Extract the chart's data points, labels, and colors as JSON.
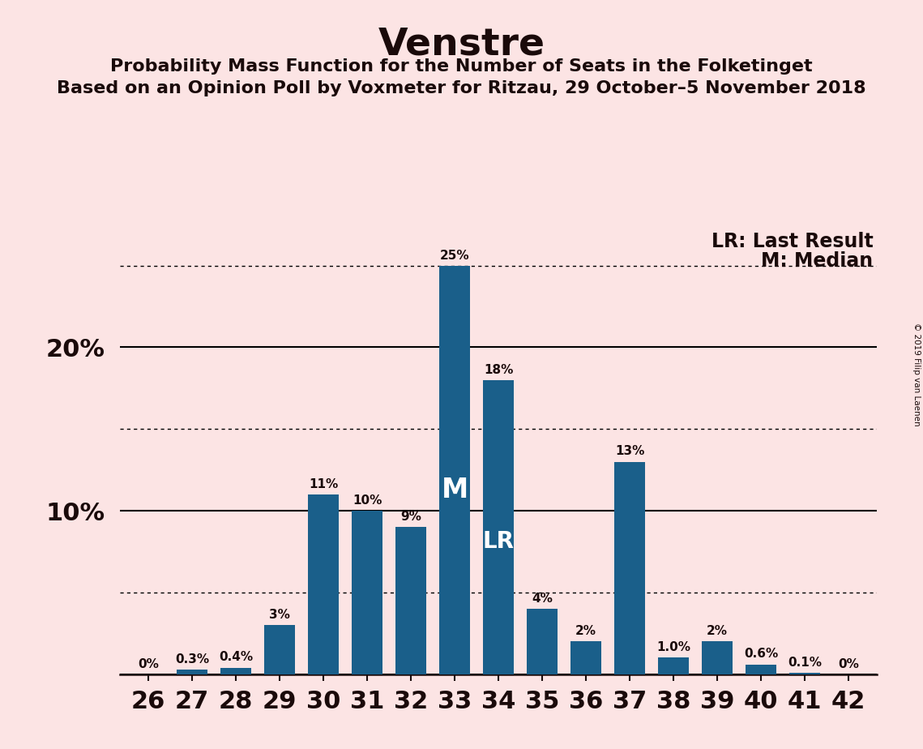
{
  "title": "Venstre",
  "subtitle1": "Probability Mass Function for the Number of Seats in the Folketinget",
  "subtitle2": "Based on an Opinion Poll by Voxmeter for Ritzau, 29 October–5 November 2018",
  "watermark": "© 2019 Filip van Laenen",
  "seats": [
    26,
    27,
    28,
    29,
    30,
    31,
    32,
    33,
    34,
    35,
    36,
    37,
    38,
    39,
    40,
    41,
    42
  ],
  "probabilities": [
    0.0,
    0.3,
    0.4,
    3.0,
    11.0,
    10.0,
    9.0,
    25.0,
    18.0,
    4.0,
    2.0,
    13.0,
    1.0,
    2.0,
    0.6,
    0.1,
    0.0
  ],
  "bar_labels": [
    "0%",
    "0.3%",
    "0.4%",
    "3%",
    "11%",
    "10%",
    "9%",
    "25%",
    "18%",
    "4%",
    "2%",
    "13%",
    "1.0%",
    "2%",
    "0.6%",
    "0.1%",
    "0%"
  ],
  "bar_color": "#1a5f8a",
  "background_color": "#fce4e4",
  "text_color": "#1a0a0a",
  "median_seat": 33,
  "last_result_seat": 34,
  "legend_lr": "LR: Last Result",
  "legend_m": "M: Median",
  "solid_line_y": [
    0,
    10,
    20
  ],
  "dotted_line_y": [
    5,
    15,
    25
  ],
  "ylim": [
    0,
    27.5
  ],
  "median_label_fontsize": 24,
  "lr_label_fontsize": 20,
  "bar_label_fontsize": 11,
  "ytick_fontsize": 22,
  "xtick_fontsize": 22,
  "title_fontsize": 34,
  "subtitle_fontsize": 16,
  "legend_fontsize": 17
}
